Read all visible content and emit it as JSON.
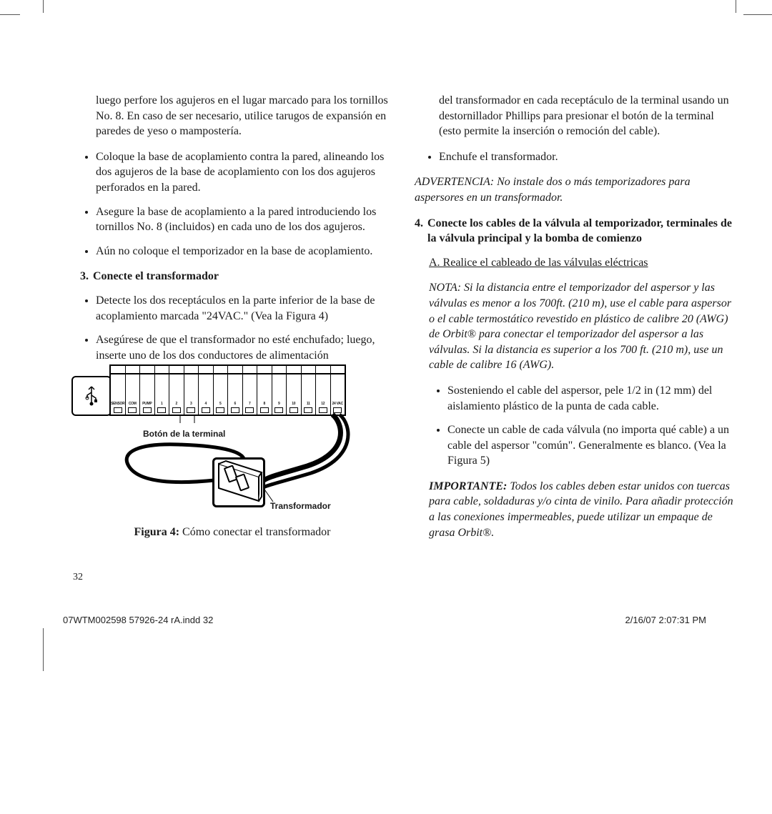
{
  "col1": {
    "intro": "luego perfore los agujeros en el lugar marcado para los tornillos No. 8. En caso de ser necesario, utilice tarugos de expansión en paredes de yeso o mampostería.",
    "bullets1": [
      "Coloque la base de acoplamiento contra la pared, alineando los dos agujeros de la base de acoplamiento con los dos agujeros perforados en la pared.",
      "Asegure la base de acoplamiento a la pared introduciendo los tornillos No. 8 (incluidos) en cada uno de los dos agujeros.",
      "Aún no coloque el temporizador en la base de acoplamiento."
    ],
    "step3_num": "3.",
    "step3_title": "Conecte el transformador",
    "bullets2": [
      "Detecte los dos receptáculos en la parte inferior de la base de acoplamiento marcada \"24VAC.\" (Vea la Figura 4)",
      "Asegúrese de que el transformador no esté enchufado; luego, inserte uno de los dos conductores de alimentación"
    ],
    "fig": {
      "terminal_labels": [
        "SENSOR",
        "COM",
        "PUMP",
        "1",
        "2",
        "3",
        "4",
        "5",
        "6",
        "7",
        "8",
        "9",
        "10",
        "11",
        "12",
        "24 VAC"
      ],
      "button_label": "Botón de la terminal",
      "transformer_label": "Transformador",
      "caption_bold": "Figura 4:",
      "caption_rest": " Cómo conectar el transformador"
    }
  },
  "col2": {
    "cont": "del transformador en cada receptáculo de la terminal usando un destornillador Phillips para presionar el botón de la terminal (esto permite la inserción o remoción del cable).",
    "bullet_enchufe": "Enchufe el transformador.",
    "warning": "ADVERTENCIA: No instale dos o más temporizadores para aspersores  en un transformador.",
    "step4_num": "4.",
    "step4_title": "Conecte los cables de la válvula al temporizador, terminales de la válvula principal y la bomba de comienzo",
    "step4_a": "A. Realice el cableado de las válvulas eléctricas",
    "nota": "NOTA: Si la distancia entre el temporizador del aspersor y las válvulas es menor a los 700ft. (210 m), use el cable para aspersor o el cable termostático revestido en plástico de calibre 20 (AWG) de Orbit® para conectar el temporizador del aspersor a las válvulas. Si la distancia es superior a los 700 ft. (210 m), use un cable de calibre 16 (AWG).",
    "bullets": [
      "Sosteniendo el cable del aspersor, pele 1/2 in (12 mm) del aislamiento plástico de la punta de cada cable.",
      "Conecte un cable de cada válvula (no importa qué cable) a un cable del aspersor \"común\". Generalmente es blanco. (Vea la Figura 5)"
    ],
    "importante_bold": "IMPORTANTE:",
    "importante_rest": " Todos los cables deben estar unidos con tuercas para cable, soldaduras y/o cinta de vinilo. Para añadir protección a las conexiones impermeables, puede utilizar un empaque de grasa Orbit®."
  },
  "page_number": "32",
  "footer_left": "07WTM002598 57926-24 rA.indd   32",
  "footer_right": "2/16/07   2:07:31 PM"
}
